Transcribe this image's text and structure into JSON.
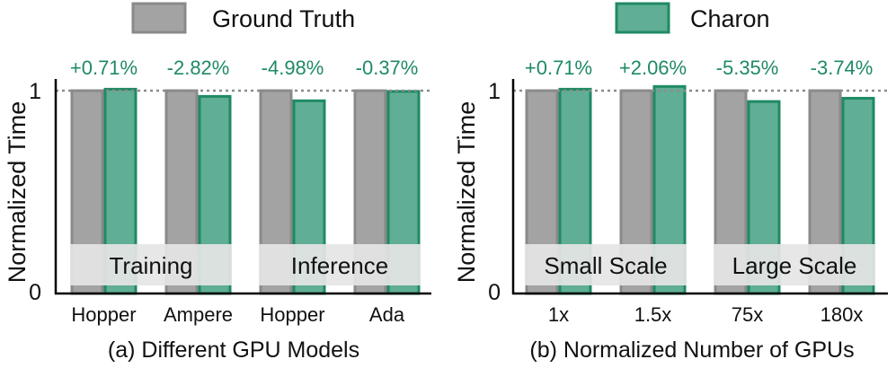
{
  "legend": [
    {
      "name": "Ground Truth",
      "color": "#a3a3a3",
      "stroke": "#8a8a8a"
    },
    {
      "name": "Charon",
      "color": "#5fae95",
      "stroke": "#1f8a63"
    }
  ],
  "colors": {
    "percent_label": "#1f8a63",
    "group_box": "#e5e5e5"
  },
  "chart_data": [
    {
      "type": "bar",
      "caption": "(a) Different GPU Models",
      "ylabel": "Normalized Time",
      "ylim": [
        0,
        1.15
      ],
      "yticks": [
        "0",
        "1"
      ],
      "reference_line": 1,
      "categories": [
        "Hopper",
        "Ampere",
        "Hopper",
        "Ada"
      ],
      "series": [
        {
          "name": "Ground Truth",
          "values": [
            1,
            1,
            1,
            1
          ]
        },
        {
          "name": "Charon",
          "values": [
            1.0071,
            0.9718,
            0.9502,
            0.9963
          ]
        }
      ],
      "annotations": [
        "+0.71%",
        "-2.82%",
        "-4.98%",
        "-0.37%"
      ],
      "groups": [
        {
          "label": "Training",
          "span": [
            0,
            1
          ]
        },
        {
          "label": "Inference",
          "span": [
            2,
            3
          ]
        }
      ]
    },
    {
      "type": "bar",
      "caption": "(b) Normalized Number of GPUs",
      "ylabel": "Normalized Time",
      "ylim": [
        0,
        1.15
      ],
      "yticks": [
        "0",
        "1"
      ],
      "reference_line": 1,
      "categories": [
        "1x",
        "1.5x",
        "75x",
        "180x"
      ],
      "series": [
        {
          "name": "Ground Truth",
          "values": [
            1,
            1,
            1,
            1
          ]
        },
        {
          "name": "Charon",
          "values": [
            1.0071,
            1.0206,
            0.9465,
            0.9626
          ]
        }
      ],
      "annotations": [
        "+0.71%",
        "+2.06%",
        "-5.35%",
        "-3.74%"
      ],
      "groups": [
        {
          "label": "Small Scale",
          "span": [
            0,
            1
          ]
        },
        {
          "label": "Large Scale",
          "span": [
            2,
            3
          ]
        }
      ]
    }
  ]
}
